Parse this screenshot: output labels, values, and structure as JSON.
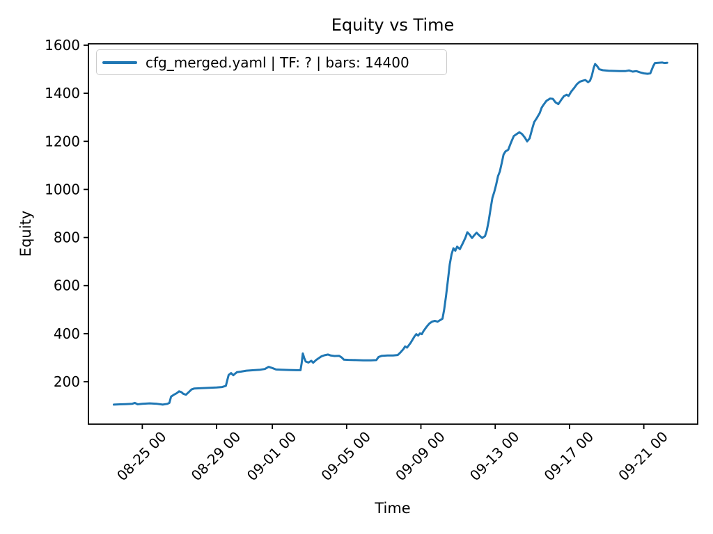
{
  "figure": {
    "background": "#ffffff",
    "accent_color": "#1f77b4"
  },
  "chart_data": {
    "type": "line",
    "title": "Equity vs Time",
    "xlabel": "Time",
    "ylabel": "Equity",
    "grid": false,
    "legend_position": "upper left",
    "x_base_date": "08-23 00:00",
    "x_unit": "days since x_base_date",
    "xlim_days": [
      -0.9,
      31.9
    ],
    "ylim": [
      23.6,
      1605.8
    ],
    "x_ticks": {
      "values_days": [
        2,
        6,
        9,
        13,
        17,
        21,
        25,
        29
      ],
      "labels": [
        "08-25 00",
        "08-29 00",
        "09-01 00",
        "09-05 00",
        "09-09 00",
        "09-13 00",
        "09-17 00",
        "09-21 00"
      ]
    },
    "y_ticks": [
      200,
      400,
      600,
      800,
      1000,
      1200,
      1400,
      1600
    ],
    "series": [
      {
        "name": "cfg_merged.yaml | TF: ? | bars: 14400",
        "color": "#1f77b4",
        "points": [
          [
            0.47,
            105
          ],
          [
            0.8,
            106
          ],
          [
            1.1,
            107
          ],
          [
            1.45,
            108
          ],
          [
            1.6,
            112
          ],
          [
            1.75,
            106
          ],
          [
            2.0,
            108
          ],
          [
            2.4,
            110
          ],
          [
            2.8,
            108
          ],
          [
            3.1,
            105
          ],
          [
            3.35,
            108
          ],
          [
            3.46,
            112
          ],
          [
            3.55,
            138
          ],
          [
            3.7,
            146
          ],
          [
            3.85,
            152
          ],
          [
            3.98,
            160
          ],
          [
            4.1,
            157
          ],
          [
            4.2,
            150
          ],
          [
            4.35,
            146
          ],
          [
            4.5,
            157
          ],
          [
            4.65,
            168
          ],
          [
            4.8,
            172
          ],
          [
            5.2,
            173
          ],
          [
            5.6,
            175
          ],
          [
            6.0,
            176
          ],
          [
            6.3,
            178
          ],
          [
            6.5,
            183
          ],
          [
            6.57,
            205
          ],
          [
            6.65,
            228
          ],
          [
            6.78,
            236
          ],
          [
            6.9,
            227
          ],
          [
            7.0,
            234
          ],
          [
            7.1,
            240
          ],
          [
            7.3,
            242
          ],
          [
            7.6,
            246
          ],
          [
            8.0,
            248
          ],
          [
            8.35,
            250
          ],
          [
            8.6,
            253
          ],
          [
            8.8,
            262
          ],
          [
            9.0,
            257
          ],
          [
            9.2,
            251
          ],
          [
            9.5,
            250
          ],
          [
            9.9,
            249
          ],
          [
            10.3,
            248
          ],
          [
            10.52,
            248
          ],
          [
            10.58,
            278
          ],
          [
            10.64,
            318
          ],
          [
            10.72,
            298
          ],
          [
            10.8,
            284
          ],
          [
            10.95,
            280
          ],
          [
            11.1,
            287
          ],
          [
            11.2,
            279
          ],
          [
            11.35,
            290
          ],
          [
            11.5,
            298
          ],
          [
            11.65,
            306
          ],
          [
            11.8,
            310
          ],
          [
            12.0,
            313
          ],
          [
            12.15,
            309
          ],
          [
            12.35,
            307
          ],
          [
            12.6,
            308
          ],
          [
            12.75,
            300
          ],
          [
            12.85,
            292
          ],
          [
            13.1,
            291
          ],
          [
            13.5,
            290
          ],
          [
            13.9,
            289
          ],
          [
            14.3,
            289
          ],
          [
            14.6,
            290
          ],
          [
            14.72,
            303
          ],
          [
            14.9,
            308
          ],
          [
            15.2,
            309
          ],
          [
            15.5,
            309
          ],
          [
            15.75,
            311
          ],
          [
            15.9,
            322
          ],
          [
            16.05,
            335
          ],
          [
            16.15,
            347
          ],
          [
            16.25,
            342
          ],
          [
            16.35,
            352
          ],
          [
            16.45,
            362
          ],
          [
            16.55,
            375
          ],
          [
            16.65,
            388
          ],
          [
            16.75,
            398
          ],
          [
            16.85,
            392
          ],
          [
            16.95,
            401
          ],
          [
            17.05,
            398
          ],
          [
            17.15,
            412
          ],
          [
            17.3,
            428
          ],
          [
            17.45,
            442
          ],
          [
            17.6,
            450
          ],
          [
            17.75,
            453
          ],
          [
            17.9,
            450
          ],
          [
            18.05,
            457
          ],
          [
            18.16,
            462
          ],
          [
            18.25,
            500
          ],
          [
            18.35,
            555
          ],
          [
            18.45,
            620
          ],
          [
            18.55,
            688
          ],
          [
            18.65,
            730
          ],
          [
            18.75,
            755
          ],
          [
            18.85,
            745
          ],
          [
            18.95,
            762
          ],
          [
            19.1,
            752
          ],
          [
            19.25,
            775
          ],
          [
            19.4,
            800
          ],
          [
            19.5,
            822
          ],
          [
            19.62,
            812
          ],
          [
            19.75,
            798
          ],
          [
            19.9,
            812
          ],
          [
            20.0,
            820
          ],
          [
            20.15,
            808
          ],
          [
            20.3,
            798
          ],
          [
            20.45,
            806
          ],
          [
            20.55,
            830
          ],
          [
            20.65,
            870
          ],
          [
            20.75,
            920
          ],
          [
            20.85,
            965
          ],
          [
            20.95,
            990
          ],
          [
            21.05,
            1020
          ],
          [
            21.15,
            1055
          ],
          [
            21.25,
            1075
          ],
          [
            21.35,
            1110
          ],
          [
            21.45,
            1145
          ],
          [
            21.55,
            1158
          ],
          [
            21.7,
            1165
          ],
          [
            21.85,
            1195
          ],
          [
            22.0,
            1222
          ],
          [
            22.15,
            1230
          ],
          [
            22.3,
            1238
          ],
          [
            22.45,
            1230
          ],
          [
            22.6,
            1215
          ],
          [
            22.72,
            1200
          ],
          [
            22.85,
            1212
          ],
          [
            23.0,
            1255
          ],
          [
            23.1,
            1280
          ],
          [
            23.25,
            1298
          ],
          [
            23.4,
            1318
          ],
          [
            23.5,
            1340
          ],
          [
            23.6,
            1352
          ],
          [
            23.75,
            1368
          ],
          [
            23.95,
            1378
          ],
          [
            24.1,
            1377
          ],
          [
            24.25,
            1362
          ],
          [
            24.4,
            1355
          ],
          [
            24.55,
            1372
          ],
          [
            24.7,
            1388
          ],
          [
            24.85,
            1394
          ],
          [
            24.95,
            1389
          ],
          [
            25.1,
            1408
          ],
          [
            25.25,
            1422
          ],
          [
            25.4,
            1438
          ],
          [
            25.55,
            1448
          ],
          [
            25.7,
            1452
          ],
          [
            25.85,
            1455
          ],
          [
            26.0,
            1446
          ],
          [
            26.1,
            1452
          ],
          [
            26.2,
            1472
          ],
          [
            26.3,
            1505
          ],
          [
            26.38,
            1522
          ],
          [
            26.5,
            1512
          ],
          [
            26.6,
            1500
          ],
          [
            26.8,
            1496
          ],
          [
            27.1,
            1494
          ],
          [
            27.4,
            1493
          ],
          [
            27.7,
            1492
          ],
          [
            28.0,
            1492
          ],
          [
            28.2,
            1495
          ],
          [
            28.4,
            1490
          ],
          [
            28.6,
            1492
          ],
          [
            28.8,
            1487
          ],
          [
            29.0,
            1483
          ],
          [
            29.2,
            1481
          ],
          [
            29.35,
            1483
          ],
          [
            29.5,
            1512
          ],
          [
            29.6,
            1526
          ],
          [
            29.8,
            1527
          ],
          [
            30.0,
            1528
          ],
          [
            30.1,
            1526
          ],
          [
            30.26,
            1527
          ]
        ]
      }
    ]
  }
}
